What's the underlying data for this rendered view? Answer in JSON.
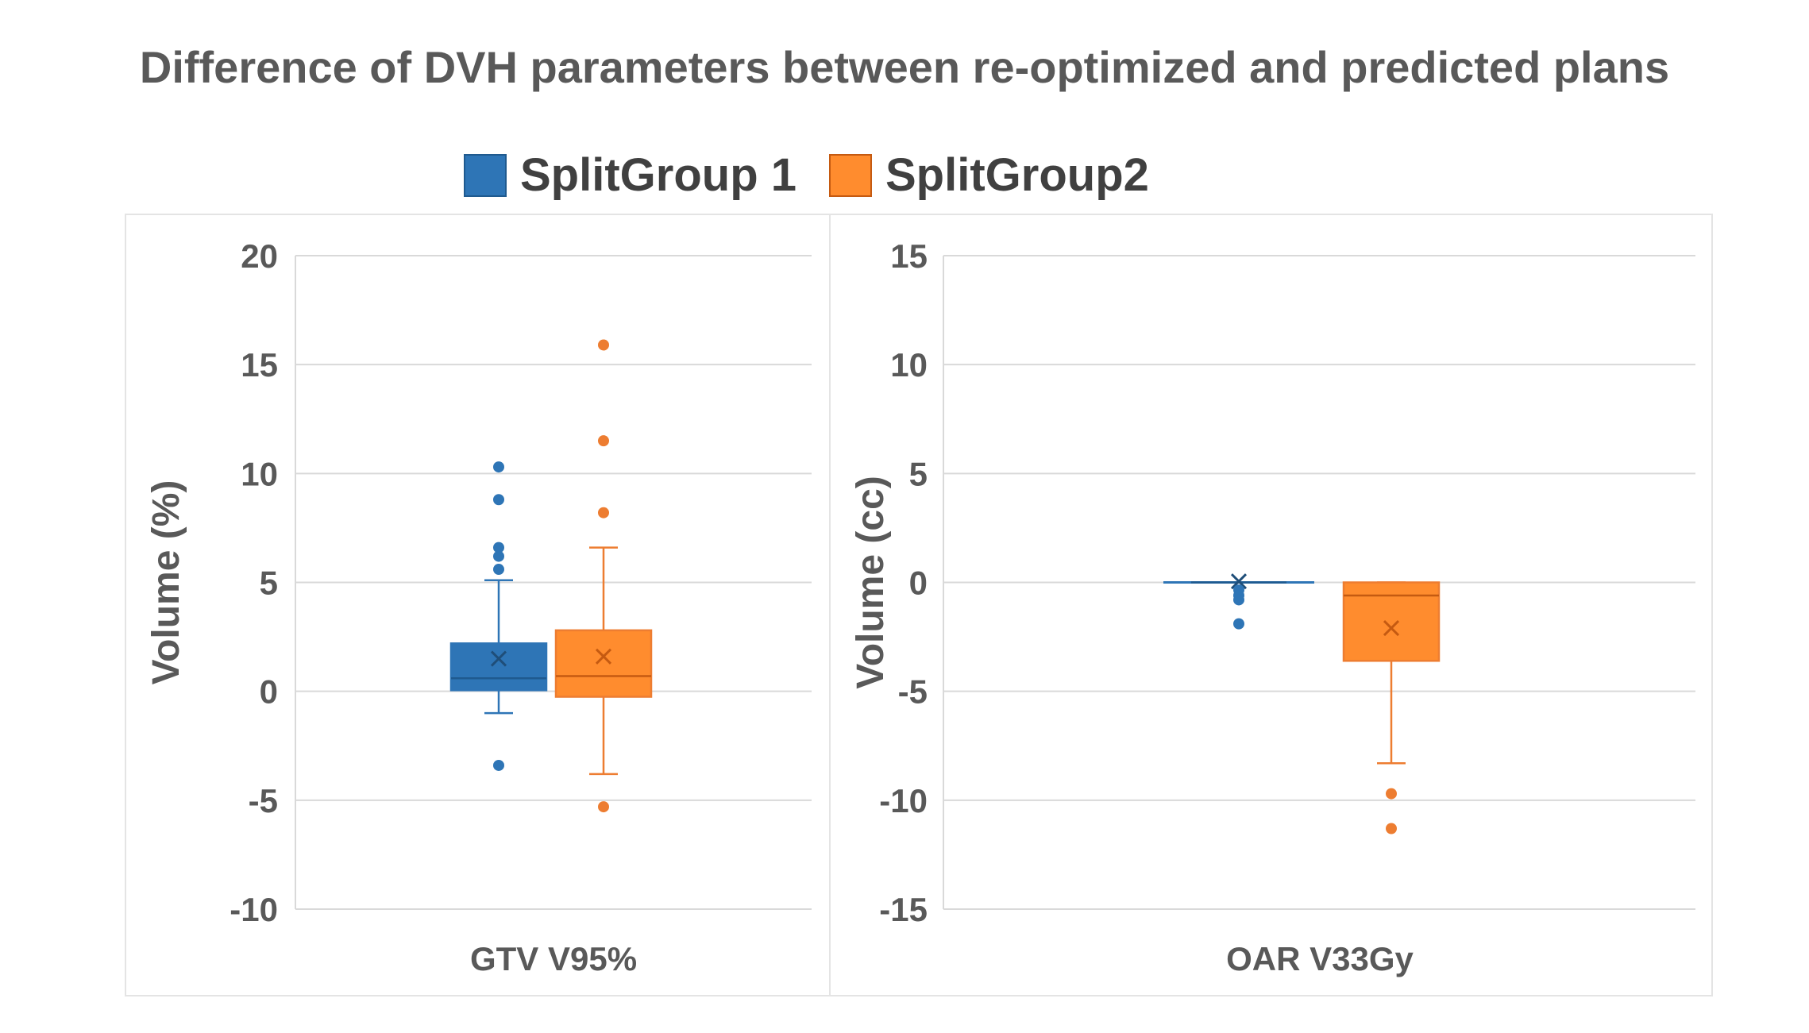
{
  "chart_data": {
    "type": "box",
    "title": "Difference of DVH parameters between re-optimized and predicted plans",
    "legend": {
      "position": "top",
      "items": [
        {
          "name": "SplitGroup 1",
          "color": "#2E75B6"
        },
        {
          "name": "SplitGroup2",
          "color": "#ED7D31"
        }
      ]
    },
    "panels": [
      {
        "category": "GTV V95%",
        "ylabel": "Volume (%)",
        "ylim": [
          -10,
          20
        ],
        "yticks": [
          "20",
          "15",
          "10",
          "5",
          "0",
          "-5",
          "-10"
        ],
        "ytick_values": [
          20,
          15,
          10,
          5,
          0,
          -5,
          -10
        ],
        "grid": true,
        "series": [
          {
            "name": "SplitGroup 1",
            "color": "#2E75B6",
            "fill": "#2E75B6",
            "whisker_low": -1.0,
            "q1": 0.05,
            "median": 0.6,
            "q3": 2.2,
            "whisker_high": 5.1,
            "mean": 1.5,
            "outliers": [
              10.3,
              8.8,
              6.6,
              6.2,
              5.6,
              -3.4
            ]
          },
          {
            "name": "SplitGroup2",
            "color": "#ED7D31",
            "fill": "#FF8C2E",
            "whisker_low": -3.8,
            "q1": -0.25,
            "median": 0.7,
            "q3": 2.8,
            "whisker_high": 6.6,
            "mean": 1.6,
            "outliers": [
              15.9,
              11.5,
              8.2,
              -5.3
            ]
          }
        ]
      },
      {
        "category": "OAR V33Gy",
        "ylabel": "Volume (cc)",
        "ylim": [
          -15,
          15
        ],
        "yticks": [
          "15",
          "10",
          "5",
          "0",
          "-5",
          "-10",
          "-15"
        ],
        "ytick_values": [
          15,
          10,
          5,
          0,
          -5,
          -10,
          -15
        ],
        "grid": true,
        "series": [
          {
            "name": "SplitGroup 1",
            "color": "#2E75B6",
            "fill": "#2E75B6",
            "whisker_low": 0,
            "q1": 0,
            "median": 0,
            "q3": 0,
            "whisker_high": 0,
            "mean": 0.05,
            "outliers": [
              -0.35,
              -0.6,
              -0.8,
              -1.9
            ]
          },
          {
            "name": "SplitGroup2",
            "color": "#ED7D31",
            "fill": "#FF8C2E",
            "whisker_low": -8.3,
            "q1": -3.6,
            "median": -0.6,
            "q3": 0,
            "whisker_high": 0,
            "mean": -2.1,
            "outliers": [
              -9.7,
              -11.3
            ]
          }
        ]
      }
    ]
  }
}
